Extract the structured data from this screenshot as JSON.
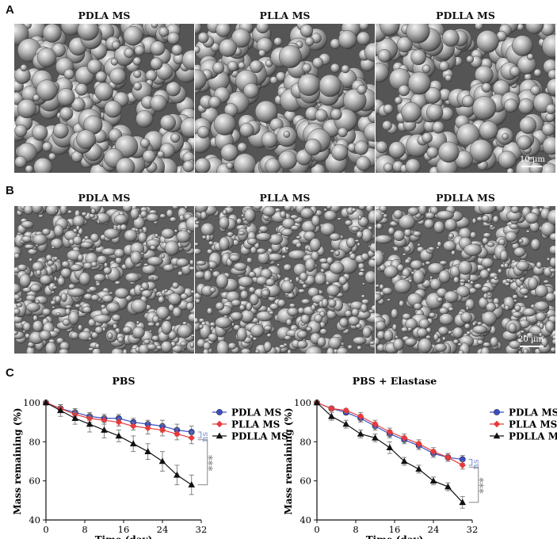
{
  "panels": {
    "A": {
      "letter": "A",
      "titles": [
        "PDLA MS",
        "PLLA MS",
        "PDLLA MS"
      ],
      "scale_bar": "10 µm"
    },
    "B": {
      "letter": "B",
      "titles": [
        "PDLA MS",
        "PLLA MS",
        "PDLLA MS"
      ],
      "scale_bar": "20 µm"
    },
    "C": {
      "letter": "C"
    }
  },
  "colors": {
    "PDLA MS": "#3a4fc4",
    "PLLA MS": "#e83a3a",
    "PDLLA MS": "#111111",
    "sig_ns": "#7a8fc8",
    "sig_stars": "#888888"
  },
  "chart_data": [
    {
      "type": "line",
      "title": "PBS",
      "xlabel": "Time (day)",
      "ylabel": "Mass remaining (%)",
      "xlim": [
        0,
        32
      ],
      "ylim": [
        40,
        100
      ],
      "xticks": [
        0,
        8,
        16,
        24,
        32
      ],
      "yticks": [
        40,
        60,
        80,
        100
      ],
      "x": [
        0,
        3,
        6,
        9,
        12,
        15,
        18,
        21,
        24,
        27,
        30
      ],
      "series": [
        {
          "name": "PDLA MS",
          "marker": "circle",
          "values": [
            100,
            97,
            95,
            93,
            92,
            92,
            90,
            89,
            88,
            86,
            85
          ],
          "err": [
            1,
            2,
            2,
            2,
            2,
            2,
            2,
            2,
            3,
            3,
            3
          ]
        },
        {
          "name": "PLLA MS",
          "marker": "diamond",
          "values": [
            100,
            97,
            94,
            92,
            91,
            90,
            88,
            87,
            86,
            84,
            82
          ],
          "err": [
            1,
            2,
            2,
            2,
            2,
            2,
            2,
            3,
            3,
            3,
            3
          ]
        },
        {
          "name": "PDLLA MS",
          "marker": "triangle",
          "values": [
            100,
            96,
            92,
            89,
            86,
            83,
            79,
            75,
            70,
            63,
            58
          ],
          "err": [
            1,
            3,
            3,
            4,
            4,
            3,
            4,
            4,
            5,
            5,
            5
          ]
        }
      ],
      "legend": [
        "PDLA MS",
        "PLLA MS",
        "PDLLA MS"
      ],
      "legend_position": "right",
      "annotations": [
        "ns",
        "***"
      ]
    },
    {
      "type": "line",
      "title": "PBS + Elastase",
      "xlabel": "Time (day)",
      "ylabel": "Mass remaining (%)",
      "xlim": [
        0,
        32
      ],
      "ylim": [
        40,
        100
      ],
      "xticks": [
        0,
        8,
        16,
        24,
        32
      ],
      "yticks": [
        40,
        60,
        80,
        100
      ],
      "x": [
        0,
        3,
        6,
        9,
        12,
        15,
        18,
        21,
        24,
        27,
        30
      ],
      "series": [
        {
          "name": "PDLA MS",
          "marker": "circle",
          "values": [
            100,
            97,
            95,
            92,
            88,
            84,
            81,
            78,
            74,
            72,
            71
          ],
          "err": [
            1,
            1,
            1,
            2,
            2,
            2,
            2,
            2,
            2,
            2,
            2
          ]
        },
        {
          "name": "PLLA MS",
          "marker": "diamond",
          "values": [
            100,
            97,
            96,
            93,
            89,
            85,
            82,
            79,
            75,
            72,
            68
          ],
          "err": [
            1,
            1,
            1,
            2,
            2,
            2,
            2,
            2,
            2,
            2,
            2
          ]
        },
        {
          "name": "PDLLA MS",
          "marker": "triangle",
          "values": [
            100,
            93,
            89,
            84,
            82,
            77,
            70,
            66,
            60,
            57,
            49
          ],
          "err": [
            1,
            2,
            2,
            2,
            2,
            3,
            2,
            2,
            2,
            2,
            3
          ]
        }
      ],
      "legend": [
        "PDLA MS",
        "PLLA MS",
        "PDLLA MS"
      ],
      "legend_position": "right",
      "annotations": [
        "ns",
        "***"
      ]
    }
  ]
}
